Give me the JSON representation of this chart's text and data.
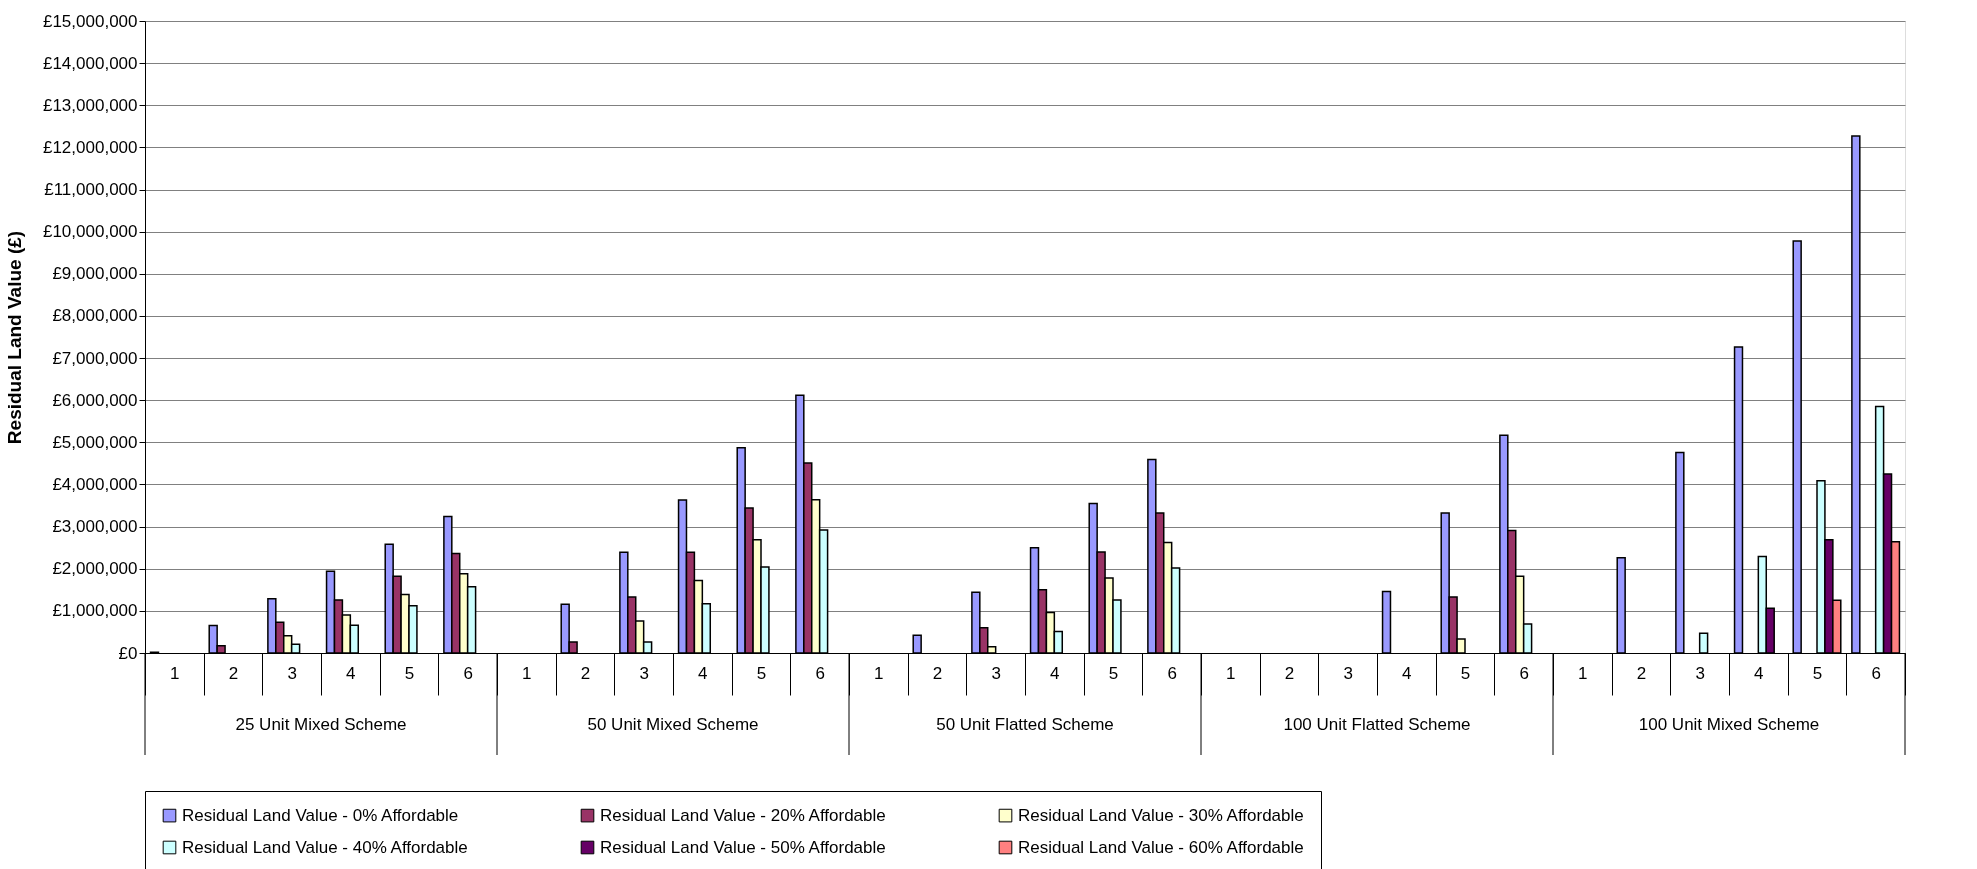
{
  "chart_data": {
    "type": "bar",
    "ylabel": "Residual Land Value (£)",
    "categories": [
      "1",
      "2",
      "3",
      "4",
      "5",
      "6",
      "1",
      "2",
      "3",
      "4",
      "5",
      "6",
      "1",
      "2",
      "3",
      "4",
      "5",
      "6",
      "1",
      "2",
      "3",
      "4",
      "5",
      "6",
      "1",
      "2",
      "3",
      "4",
      "5",
      "6"
    ],
    "annotations": [
      "25 Unit Mixed Scheme",
      "50 Unit Mixed Scheme",
      "50 Unit Flatted Scheme",
      "100 Unit Flatted Scheme",
      "100 Unit Mixed Scheme"
    ],
    "ylim": [
      0,
      15000000
    ],
    "yticks": [
      {
        "value": 0,
        "label": "£0"
      },
      {
        "value": 1000000,
        "label": "£1,000,000"
      },
      {
        "value": 2000000,
        "label": "£2,000,000"
      },
      {
        "value": 3000000,
        "label": "£3,000,000"
      },
      {
        "value": 4000000,
        "label": "£4,000,000"
      },
      {
        "value": 5000000,
        "label": "£5,000,000"
      },
      {
        "value": 6000000,
        "label": "£6,000,000"
      },
      {
        "value": 7000000,
        "label": "£7,000,000"
      },
      {
        "value": 8000000,
        "label": "£8,000,000"
      },
      {
        "value": 9000000,
        "label": "£9,000,000"
      },
      {
        "value": 10000000,
        "label": "£10,000,000"
      },
      {
        "value": 11000000,
        "label": "£11,000,000"
      },
      {
        "value": 12000000,
        "label": "£12,000,000"
      },
      {
        "value": 13000000,
        "label": "£13,000,000"
      },
      {
        "value": 14000000,
        "label": "£14,000,000"
      },
      {
        "value": 15000000,
        "label": "£15,000,000"
      }
    ],
    "grid": "y",
    "legend": "bottom",
    "series": [
      {
        "name": "Residual Land Value - 0% Affordable",
        "color": "#9999ff",
        "values": [
          20000,
          650000,
          1290000,
          1940000,
          2580000,
          3240000,
          null,
          1160000,
          2390000,
          3630000,
          4870000,
          6120000,
          null,
          420000,
          1440000,
          2500000,
          3550000,
          4590000,
          null,
          null,
          null,
          1460000,
          3320000,
          5170000,
          null,
          2260000,
          4760000,
          7260000,
          9780000,
          12270000
        ]
      },
      {
        "name": "Residual Land Value - 20% Affordable",
        "color": "#993366",
        "values": [
          null,
          170000,
          730000,
          1260000,
          1820000,
          2360000,
          null,
          260000,
          1330000,
          2390000,
          3440000,
          4510000,
          null,
          null,
          600000,
          1500000,
          2400000,
          3320000,
          null,
          null,
          null,
          null,
          1330000,
          2910000,
          null,
          null,
          null,
          null,
          null,
          null
        ]
      },
      {
        "name": "Residual Land Value - 30% Affordable",
        "color": "#ffffcc",
        "values": [
          null,
          null,
          410000,
          900000,
          1390000,
          1880000,
          null,
          null,
          760000,
          1720000,
          2690000,
          3640000,
          null,
          null,
          150000,
          960000,
          1780000,
          2620000,
          null,
          null,
          null,
          null,
          330000,
          1820000,
          null,
          null,
          null,
          null,
          null,
          null
        ]
      },
      {
        "name": "Residual Land Value - 40% Affordable",
        "color": "#ccffff",
        "values": [
          null,
          null,
          210000,
          660000,
          1120000,
          1570000,
          null,
          null,
          260000,
          1170000,
          2040000,
          2920000,
          null,
          null,
          null,
          510000,
          1260000,
          2020000,
          null,
          null,
          null,
          null,
          null,
          690000,
          null,
          null,
          470000,
          2290000,
          4090000,
          5850000
        ]
      },
      {
        "name": "Residual Land Value - 50% Affordable",
        "color": "#660066",
        "values": [
          null,
          null,
          null,
          null,
          null,
          null,
          null,
          null,
          null,
          null,
          null,
          null,
          null,
          null,
          null,
          null,
          null,
          null,
          null,
          null,
          null,
          null,
          null,
          null,
          null,
          null,
          null,
          1060000,
          2690000,
          4250000
        ]
      },
      {
        "name": "Residual Land Value - 60% Affordable",
        "color": "#ff8080",
        "values": [
          null,
          null,
          null,
          null,
          null,
          null,
          null,
          null,
          null,
          null,
          null,
          null,
          null,
          null,
          null,
          null,
          null,
          null,
          null,
          null,
          null,
          null,
          null,
          null,
          null,
          null,
          null,
          null,
          1250000,
          2640000
        ]
      }
    ]
  }
}
